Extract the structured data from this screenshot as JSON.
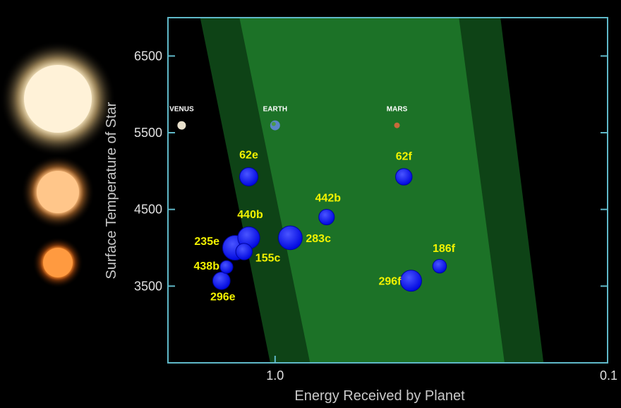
{
  "chart_data": {
    "type": "scatter",
    "xlabel": "Energy Received by Planet",
    "ylabel": "Surface Temperature of Star",
    "x_scale": "log",
    "x_direction": "decreasing",
    "xlim": [
      2.1,
      0.1
    ],
    "ylim": [
      2500,
      7000
    ],
    "x_ticks": [
      {
        "value": 1.0,
        "label": "1.0"
      },
      {
        "value": 0.1,
        "label": "0.1"
      }
    ],
    "y_ticks": [
      {
        "value": 3500,
        "label": "3500"
      },
      {
        "value": 4500,
        "label": "4500"
      },
      {
        "value": 5500,
        "label": "5500"
      },
      {
        "value": 6500,
        "label": "6500"
      }
    ],
    "grid": false,
    "habitable_zone": {
      "color": "#1f7a2a",
      "outer_bounds": [
        {
          "temp": 7000,
          "energy_min": 0.21,
          "energy_max": 1.68
        },
        {
          "temp": 2900,
          "energy_min": 0.16,
          "energy_max": 1.08
        }
      ],
      "inner_bounds": [
        {
          "temp": 7000,
          "energy_min": 0.28,
          "energy_max": 1.28
        },
        {
          "temp": 2900,
          "energy_min": 0.21,
          "energy_max": 0.82
        }
      ]
    },
    "reference_planets": [
      {
        "name": "VENUS",
        "energy": 1.91,
        "temp": 5780,
        "color": "#e8e0cc",
        "icon": "venus-icon"
      },
      {
        "name": "EARTH",
        "energy": 1.0,
        "temp": 5780,
        "color": "#5a86c8",
        "icon": "earth-icon"
      },
      {
        "name": "MARS",
        "energy": 0.43,
        "temp": 5780,
        "color": "#c86a3a",
        "icon": "mars-icon"
      }
    ],
    "series": [
      {
        "color": "#0a14ff",
        "points": [
          {
            "label": "62e",
            "energy": 1.2,
            "temp": 4925,
            "size": 1.0
          },
          {
            "label": "62f",
            "energy": 0.41,
            "temp": 4925,
            "size": 0.9
          },
          {
            "label": "442b",
            "energy": 0.7,
            "temp": 4400,
            "size": 0.85
          },
          {
            "label": "440b",
            "energy": 1.2,
            "temp": 4130,
            "size": 1.2
          },
          {
            "label": "283c",
            "energy": 0.9,
            "temp": 4130,
            "size": 1.3
          },
          {
            "label": "235e",
            "energy": 1.32,
            "temp": 4000,
            "size": 1.35
          },
          {
            "label": "155c",
            "energy": 1.24,
            "temp": 3950,
            "size": 0.9
          },
          {
            "label": "438b",
            "energy": 1.4,
            "temp": 3750,
            "size": 0.7
          },
          {
            "label": "186f",
            "energy": 0.32,
            "temp": 3760,
            "size": 0.75
          },
          {
            "label": "296f",
            "energy": 0.39,
            "temp": 3570,
            "size": 1.15
          },
          {
            "label": "296e",
            "energy": 1.45,
            "temp": 3570,
            "size": 0.95
          }
        ]
      }
    ],
    "star_glyphs": [
      {
        "temp_class": "hot",
        "color": "#fff2d8",
        "glow": "#ffd890"
      },
      {
        "temp_class": "warm",
        "color": "#ffc68a",
        "glow": "#ffb060"
      },
      {
        "temp_class": "cool",
        "color": "#ff9a40",
        "glow": "#ff8020"
      }
    ]
  }
}
